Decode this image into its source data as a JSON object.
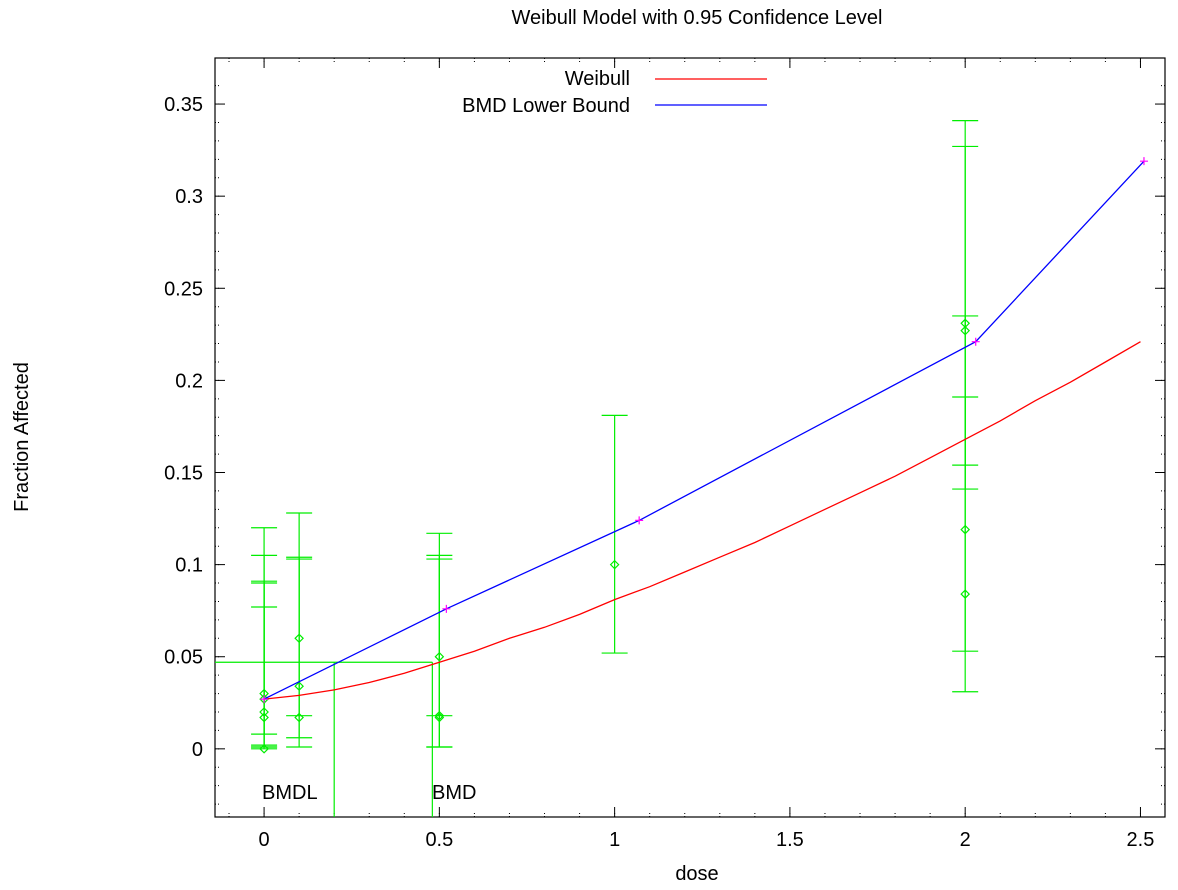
{
  "chart_data": {
    "type": "line",
    "title": "Weibull Model with 0.95 Confidence Level",
    "xlabel": "dose",
    "ylabel": "Fraction Affected",
    "xlim": [
      -0.14,
      2.57
    ],
    "ylim": [
      -0.037,
      0.375
    ],
    "x_ticks": [
      0,
      0.5,
      1,
      1.5,
      2,
      2.5
    ],
    "x_tick_labels": [
      "0",
      "0.5",
      "1",
      "1.5",
      "2",
      "2.5"
    ],
    "y_ticks": [
      0,
      0.05,
      0.1,
      0.15,
      0.2,
      0.25,
      0.3,
      0.35
    ],
    "y_tick_labels": [
      "0",
      "0.05",
      "0.1",
      "0.15",
      "0.2",
      "0.25",
      "0.3",
      "0.35"
    ],
    "grid": false,
    "legend_position": "top-center",
    "series": [
      {
        "name": "Weibull",
        "color": "#ff0000",
        "x": [
          0,
          0.1,
          0.2,
          0.3,
          0.4,
          0.5,
          0.6,
          0.7,
          0.8,
          0.9,
          1.0,
          1.1,
          1.2,
          1.3,
          1.4,
          1.5,
          1.6,
          1.7,
          1.8,
          1.9,
          2.0,
          2.1,
          2.2,
          2.3,
          2.4,
          2.5
        ],
        "y": [
          0.027,
          0.029,
          0.032,
          0.036,
          0.041,
          0.047,
          0.053,
          0.06,
          0.066,
          0.073,
          0.081,
          0.088,
          0.096,
          0.104,
          0.112,
          0.121,
          0.13,
          0.139,
          0.148,
          0.158,
          0.168,
          0.178,
          0.189,
          0.199,
          0.21,
          0.221
        ]
      },
      {
        "name": "BMD Lower Bound",
        "color": "#0000ff",
        "marker_color": "#ff00ff",
        "x": [
          0,
          0.52,
          1.07,
          2.03,
          2.51
        ],
        "y": [
          0.027,
          0.076,
          0.124,
          0.221,
          0.319
        ]
      }
    ],
    "error_bars": {
      "color": "#00ee00",
      "points": [
        {
          "x": 0,
          "y": 0.03,
          "low": 0.008,
          "high": 0.091
        },
        {
          "x": 0,
          "y": 0.02,
          "low": 0.001,
          "high": 0.12
        },
        {
          "x": 0,
          "y": 0.017,
          "low": 0.001,
          "high": 0.105
        },
        {
          "x": 0,
          "y": 0.0,
          "low": 0.0,
          "high": 0.077
        },
        {
          "x": 0,
          "y": 0.027,
          "low": 0.002,
          "high": 0.09
        },
        {
          "x": 0.1,
          "y": 0.06,
          "low": 0.018,
          "high": 0.128
        },
        {
          "x": 0.1,
          "y": 0.034,
          "low": 0.006,
          "high": 0.104
        },
        {
          "x": 0.1,
          "y": 0.017,
          "low": 0.001,
          "high": 0.103
        },
        {
          "x": 0.5,
          "y": 0.05,
          "low": 0.018,
          "high": 0.117
        },
        {
          "x": 0.5,
          "y": 0.017,
          "low": 0.001,
          "high": 0.105
        },
        {
          "x": 0.5,
          "y": 0.018,
          "low": 0.001,
          "high": 0.103
        },
        {
          "x": 1,
          "y": 0.1,
          "low": 0.052,
          "high": 0.181
        },
        {
          "x": 2,
          "y": 0.231,
          "low": 0.154,
          "high": 0.341
        },
        {
          "x": 2,
          "y": 0.227,
          "low": 0.141,
          "high": 0.327
        },
        {
          "x": 2,
          "y": 0.119,
          "low": 0.053,
          "high": 0.235
        },
        {
          "x": 2,
          "y": 0.084,
          "low": 0.031,
          "high": 0.191
        }
      ]
    },
    "bmr_level": 0.047,
    "bmdl": {
      "x": 0.2,
      "label": "BMDL"
    },
    "bmd": {
      "x": 0.48,
      "label": "BMD"
    }
  }
}
